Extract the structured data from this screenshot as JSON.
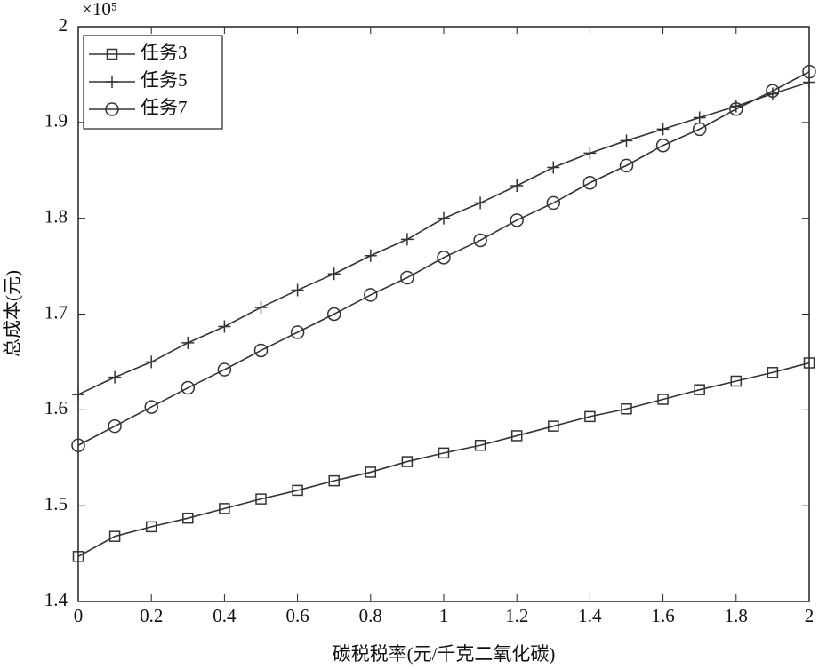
{
  "chart_data": {
    "type": "line",
    "annotations": [
      "×10⁵"
    ],
    "xlabel": "碳税税率(元/千克二氧化碳)",
    "ylabel": "总成本(元)",
    "x": [
      0,
      0.1,
      0.2,
      0.3,
      0.4,
      0.5,
      0.6,
      0.7,
      0.8,
      0.9,
      1,
      1.1,
      1.2,
      1.3,
      1.4,
      1.5,
      1.6,
      1.7,
      1.8,
      1.9,
      2
    ],
    "series": [
      {
        "name": "任务3",
        "color": "#333333",
        "marker": "square",
        "values": [
          1.447,
          1.468,
          1.478,
          1.487,
          1.497,
          1.507,
          1.516,
          1.526,
          1.535,
          1.546,
          1.555,
          1.563,
          1.573,
          1.583,
          1.593,
          1.601,
          1.611,
          1.621,
          1.63,
          1.639,
          1.649
        ]
      },
      {
        "name": "任务5",
        "color": "#333333",
        "marker": "plus",
        "values": [
          1.616,
          1.634,
          1.65,
          1.67,
          1.687,
          1.707,
          1.725,
          1.742,
          1.761,
          1.778,
          1.8,
          1.816,
          1.834,
          1.853,
          1.868,
          1.881,
          1.893,
          1.905,
          1.917,
          1.93,
          1.942
        ]
      },
      {
        "name": "任务7",
        "color": "#333333",
        "marker": "circle",
        "values": [
          1.563,
          1.583,
          1.603,
          1.623,
          1.642,
          1.662,
          1.681,
          1.7,
          1.72,
          1.738,
          1.759,
          1.777,
          1.798,
          1.816,
          1.837,
          1.855,
          1.876,
          1.893,
          1.914,
          1.933,
          1.953
        ]
      }
    ],
    "xlim": [
      0,
      2
    ],
    "xticks": [
      0,
      0.2,
      0.4,
      0.6,
      0.8,
      1,
      1.2,
      1.4,
      1.6,
      1.8,
      2
    ],
    "ylim": [
      1.4,
      2
    ],
    "yticks": [
      1.4,
      1.5,
      1.6,
      1.7,
      1.8,
      1.9,
      2
    ],
    "grid": false,
    "legend": "upper left"
  }
}
